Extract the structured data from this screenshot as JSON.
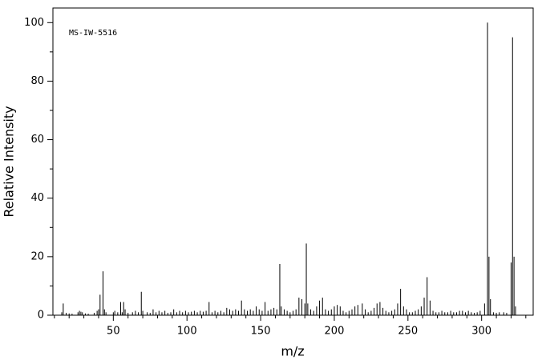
{
  "chart_data": {
    "type": "stick",
    "annotation": "MS-IW-5516",
    "xlabel": "m/z",
    "ylabel": "Relative Intensity",
    "color": "#000000",
    "xlim": [
      9,
      335
    ],
    "ylim": [
      0,
      105
    ],
    "xticks": [
      50,
      100,
      150,
      200,
      250,
      300
    ],
    "yticks": [
      0,
      20,
      40,
      60,
      80,
      100
    ],
    "xminorticks": [
      10,
      20,
      30,
      40,
      60,
      70,
      80,
      90,
      110,
      120,
      130,
      140,
      160,
      170,
      180,
      190,
      210,
      220,
      230,
      240,
      260,
      270,
      280,
      290,
      310,
      320,
      330
    ],
    "yminorticks": [
      10,
      30,
      50,
      70,
      90
    ],
    "x": [
      15,
      16,
      18,
      20,
      22,
      26,
      27,
      28,
      29,
      31,
      33,
      37,
      39,
      40,
      41,
      43,
      44,
      45,
      50,
      51,
      53,
      55,
      56,
      57,
      58,
      60,
      63,
      65,
      67,
      69,
      70,
      73,
      75,
      77,
      79,
      81,
      83,
      85,
      87,
      89,
      91,
      93,
      95,
      97,
      99,
      101,
      103,
      105,
      107,
      109,
      111,
      113,
      115,
      117,
      119,
      121,
      123,
      125,
      127,
      129,
      131,
      133,
      135,
      137,
      139,
      141,
      143,
      145,
      147,
      149,
      151,
      153,
      155,
      157,
      159,
      161,
      163,
      164,
      166,
      168,
      170,
      172,
      174,
      176,
      178,
      180,
      181,
      182,
      184,
      186,
      188,
      190,
      192,
      194,
      196,
      198,
      200,
      202,
      204,
      206,
      208,
      210,
      212,
      214,
      216,
      219,
      221,
      223,
      225,
      227,
      229,
      231,
      233,
      235,
      237,
      239,
      241,
      243,
      245,
      247,
      249,
      251,
      253,
      255,
      257,
      259,
      261,
      263,
      265,
      267,
      269,
      271,
      273,
      275,
      277,
      279,
      281,
      283,
      285,
      287,
      289,
      291,
      293,
      295,
      297,
      299,
      302,
      304,
      305,
      306,
      308,
      310,
      312,
      315,
      317,
      320,
      321,
      322,
      323
    ],
    "values": [
      1,
      4,
      0.8,
      0.6,
      0.5,
      1,
      1.5,
      1.2,
      1,
      0.6,
      0.5,
      0.8,
      1.5,
      2,
      7,
      15,
      2,
      1,
      1,
      1.5,
      1,
      4.5,
      1,
      4.5,
      2,
      0.8,
      1,
      1.5,
      1,
      8,
      1.5,
      1,
      0.8,
      2,
      1,
      1.5,
      1,
      1.5,
      0.8,
      1,
      2,
      1,
      1.5,
      1,
      1.5,
      1,
      1.2,
      1.5,
      1,
      1.5,
      1.2,
      1.5,
      4.5,
      1,
      1.5,
      1,
      1.5,
      1,
      2.5,
      2,
      1.5,
      2,
      1.5,
      5,
      2,
      1.5,
      2,
      1.5,
      3,
      2,
      1.5,
      4.5,
      1.5,
      2,
      2.5,
      2,
      17.5,
      3,
      2,
      1.5,
      1,
      1.5,
      2,
      6,
      5.5,
      4,
      24.5,
      4,
      2,
      1.5,
      3,
      5,
      6,
      2,
      1.5,
      2,
      3,
      3.5,
      3,
      1.5,
      1,
      1.5,
      2,
      3,
      3.5,
      4,
      2,
      1,
      1.5,
      2.5,
      4,
      4.5,
      2.5,
      1.5,
      1,
      1.5,
      2,
      4,
      9,
      3,
      2,
      1,
      1,
      1.5,
      2,
      3,
      6,
      13,
      5,
      1.5,
      1,
      1,
      1.5,
      1,
      1,
      1.5,
      1,
      1,
      1.5,
      1.5,
      1,
      1.5,
      1,
      0.8,
      1,
      1.5,
      4,
      100,
      20,
      5.5,
      1,
      0.8,
      1,
      1,
      0.8,
      18,
      95,
      20,
      3
    ]
  }
}
